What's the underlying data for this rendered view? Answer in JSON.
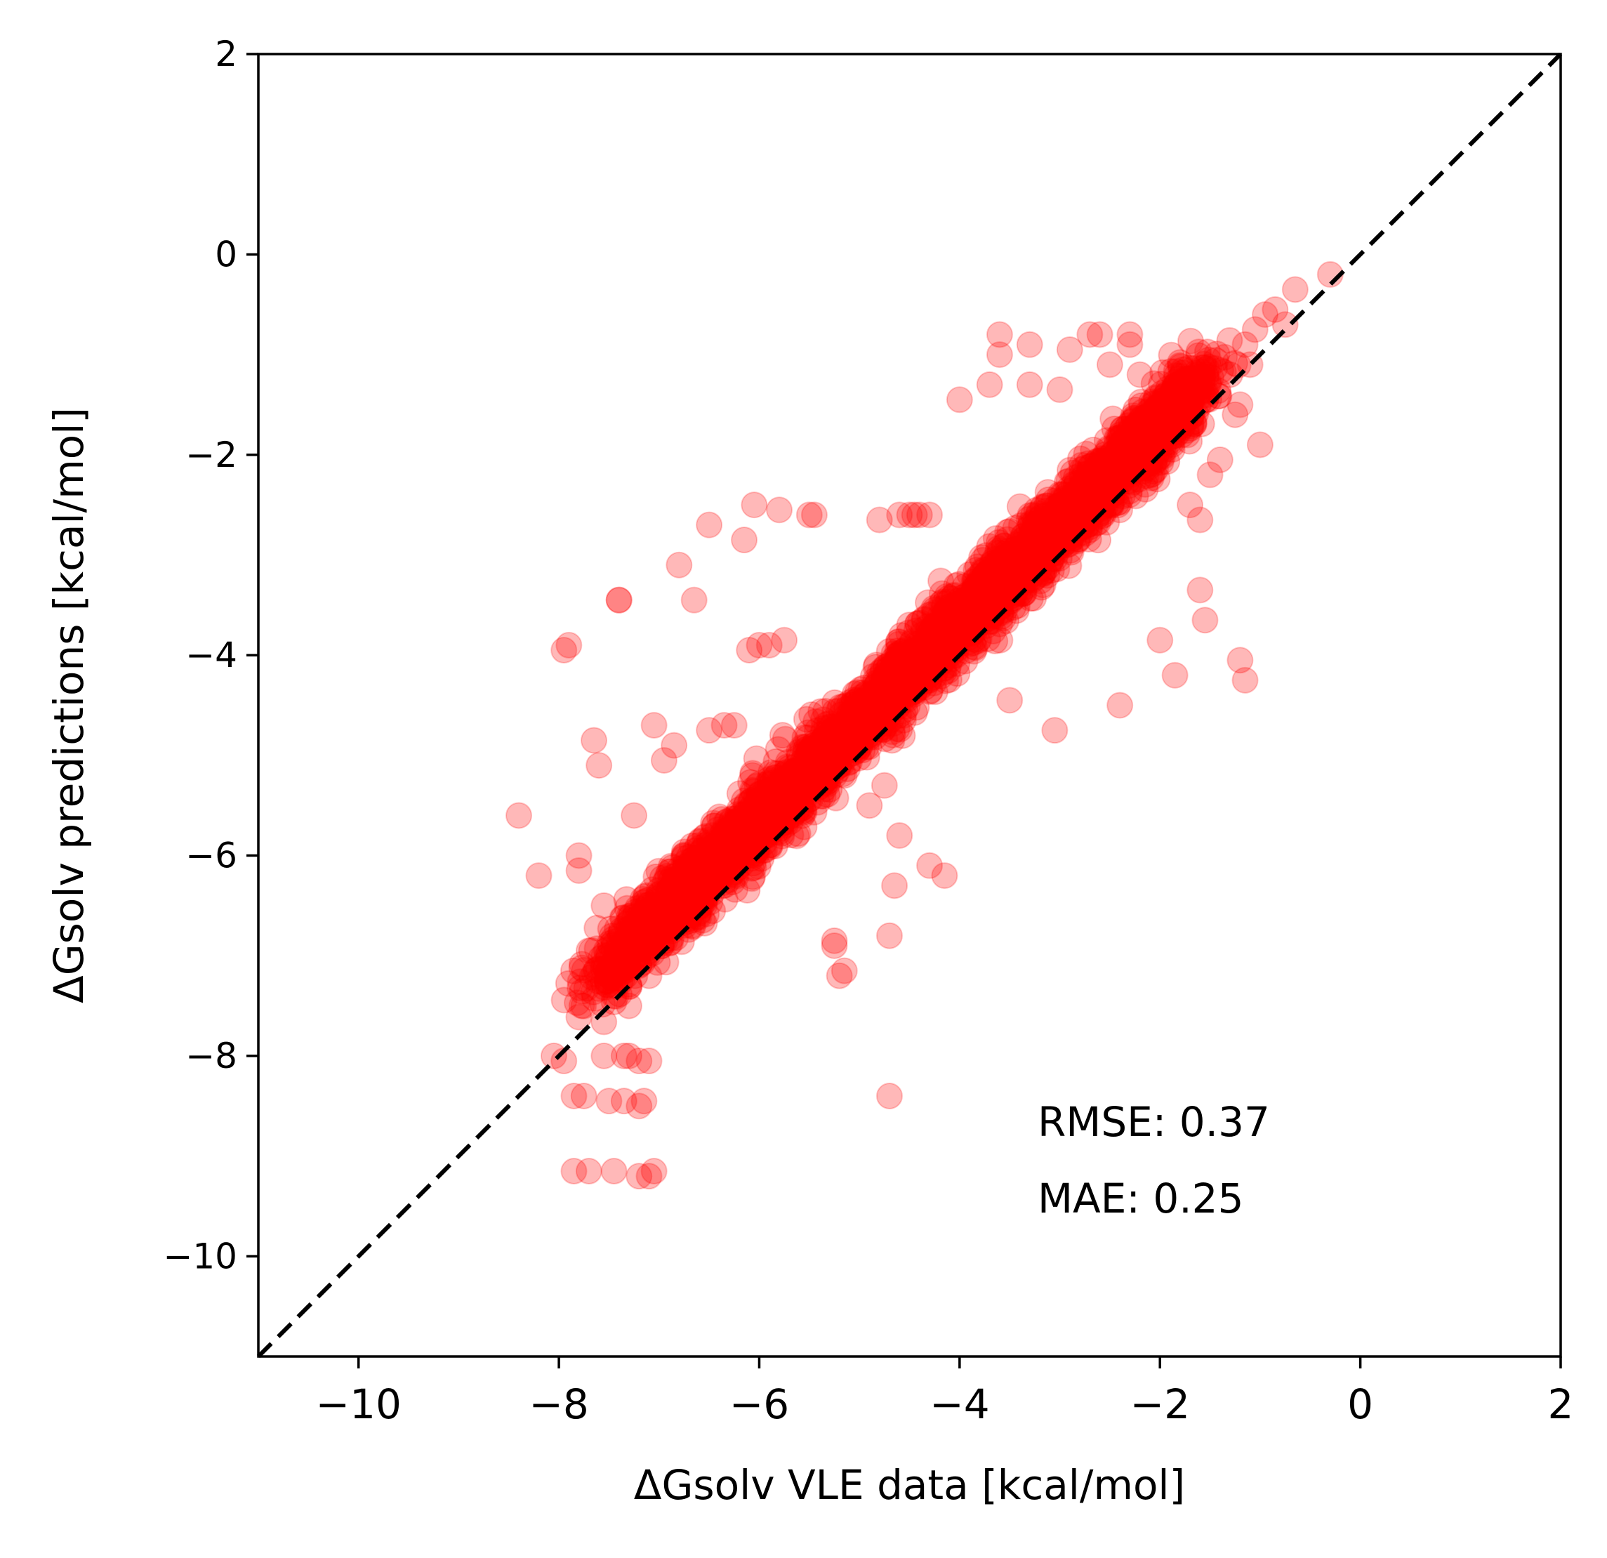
{
  "chart_data": {
    "type": "scatter",
    "title": "",
    "xlabel": "ΔGsolv VLE data [kcal/mol]",
    "ylabel": "ΔGsolv predictions [kcal/mol]",
    "xlim": [
      -11,
      2
    ],
    "ylim": [
      -11,
      2
    ],
    "x_ticks": [
      -10,
      -8,
      -6,
      -4,
      -2,
      0,
      2
    ],
    "y_ticks": [
      -10,
      -8,
      -6,
      -4,
      -2,
      0,
      2
    ],
    "x_tick_labels": [
      "−10",
      "−8",
      "−6",
      "−4",
      "−2",
      "0",
      "2"
    ],
    "y_tick_labels": [
      "−10",
      "−8",
      "−6",
      "−4",
      "−2",
      "0",
      "2"
    ],
    "grid": false,
    "marker_color": "#ff0000",
    "marker_alpha": 0.28,
    "reference_line": {
      "style": "dashed",
      "color": "#000000",
      "from": [
        -11,
        -11
      ],
      "to": [
        2,
        2
      ]
    },
    "annotations": [
      "RMSE: 0.37",
      "MAE: 0.25"
    ],
    "series": [
      {
        "name": "predictions",
        "x": [
          -0.3,
          -0.65,
          -0.75,
          -0.85,
          -0.95,
          -1.05,
          -1.15,
          -1.1,
          -1.3,
          -1.2,
          -1.25,
          -1.0,
          -1.4,
          -1.5,
          -1.7,
          -1.6,
          -2.3,
          -2.3,
          -2.6,
          -2.7,
          -2.9,
          -3.3,
          -3.3,
          -3.6,
          -3.6,
          -3.7,
          -4.0,
          -2.5,
          -2.2,
          -3.0,
          -2.0,
          -1.55,
          -1.2,
          -1.15,
          -6.05,
          -6.15,
          -6.5,
          -5.8,
          -5.5,
          -5.45,
          -4.8,
          -4.3,
          -4.4,
          -4.45,
          -4.5,
          -4.6,
          -6.65,
          -6.8,
          -6.85,
          -6.95,
          -7.4,
          -7.4,
          -7.05,
          -6.5,
          -6.35,
          -6.25,
          -6.0,
          -5.9,
          -5.75,
          -6.1,
          -7.95,
          -7.9,
          -7.65,
          -7.6,
          -7.25,
          -8.4,
          -8.2,
          -7.8,
          -7.8,
          -7.55,
          -7.7,
          -7.45,
          -7.45,
          -7.3,
          -7.1,
          -7.2,
          -7.1,
          -8.05,
          -7.95,
          -7.55,
          -7.35,
          -7.3,
          -7.2,
          -7.1,
          -7.85,
          -7.75,
          -7.5,
          -7.35,
          -7.15,
          -7.2,
          -7.85,
          -7.7,
          -7.45,
          -7.2,
          -7.1,
          -7.05,
          -4.7,
          -4.7,
          -4.65,
          -4.3,
          -4.15,
          -5.25,
          -5.2,
          -5.15,
          -5.25,
          -4.9,
          -4.75,
          -4.6,
          -3.5,
          -3.05,
          -2.4,
          -2.0,
          -1.85,
          -1.6
        ],
        "y": [
          -0.2,
          -0.35,
          -0.7,
          -0.55,
          -0.6,
          -0.75,
          -0.9,
          -1.1,
          -1.2,
          -1.5,
          -1.6,
          -1.9,
          -2.05,
          -2.2,
          -2.5,
          -2.65,
          -0.8,
          -0.9,
          -0.8,
          -0.8,
          -0.95,
          -0.9,
          -1.3,
          -0.8,
          -1.0,
          -1.3,
          -1.45,
          -1.1,
          -1.2,
          -1.35,
          -1.5,
          -3.65,
          -4.05,
          -4.25,
          -2.5,
          -2.85,
          -2.7,
          -2.55,
          -2.6,
          -2.6,
          -2.65,
          -2.6,
          -2.6,
          -2.6,
          -2.6,
          -2.6,
          -3.45,
          -3.1,
          -4.9,
          -5.05,
          -3.45,
          -3.45,
          -4.7,
          -4.75,
          -4.7,
          -4.7,
          -3.9,
          -3.9,
          -3.85,
          -3.95,
          -3.95,
          -3.9,
          -4.85,
          -5.1,
          -5.6,
          -5.6,
          -6.2,
          -6.0,
          -6.15,
          -6.5,
          -6.95,
          -7.2,
          -7.4,
          -7.5,
          -7.2,
          -7.1,
          -6.95,
          -8.0,
          -8.05,
          -8.0,
          -8.0,
          -8.0,
          -8.05,
          -8.05,
          -8.4,
          -8.4,
          -8.45,
          -8.45,
          -8.45,
          -8.5,
          -9.15,
          -9.15,
          -9.15,
          -9.2,
          -9.2,
          -9.15,
          -8.4,
          -6.8,
          -6.3,
          -6.1,
          -6.2,
          -6.85,
          -7.2,
          -7.15,
          -6.9,
          -5.5,
          -5.3,
          -5.8,
          -4.45,
          -4.75,
          -4.5,
          -3.85,
          -4.2,
          -3.35
        ]
      }
    ],
    "cloud": {
      "description_free": true,
      "axis_x_min": -7.6,
      "axis_x_max": -1.6,
      "slope": 0.98,
      "intercept": 0.25,
      "spread": 0.28,
      "count": 3400
    }
  }
}
